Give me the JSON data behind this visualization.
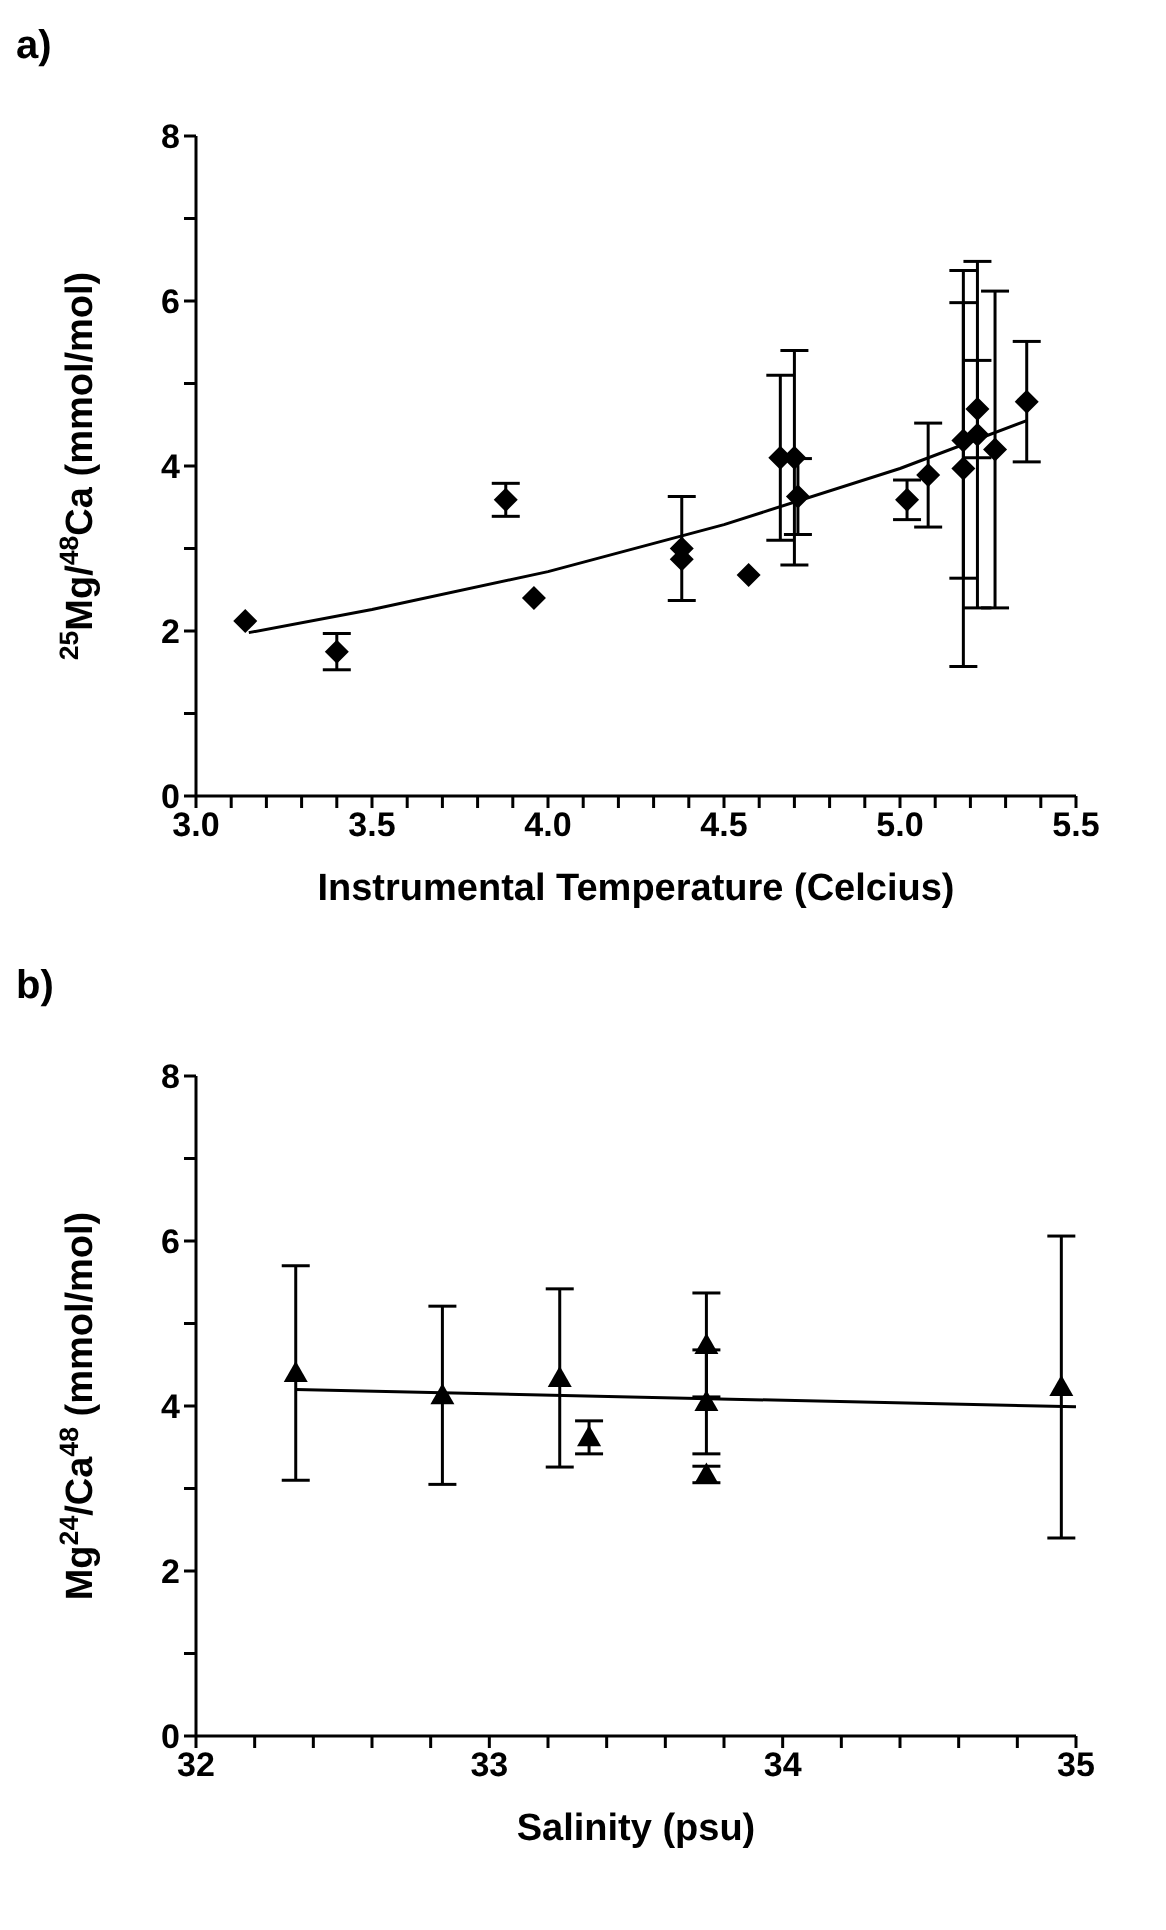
{
  "chart_data": [
    {
      "type": "scatter",
      "title": "a)",
      "xlabel": "Instrumental Temperature (Celcius)",
      "ylabel": "$^{25}$Mg/$^{48}$Ca (mmol/mol)",
      "marker": "diamond",
      "grid": false,
      "legend": false,
      "xlim": [
        3.0,
        5.5
      ],
      "ylim": [
        0,
        8
      ],
      "xticks": [
        {
          "value": 3,
          "label": "3.0"
        },
        {
          "value": 3.1,
          "label": null
        },
        {
          "value": 3.2,
          "label": null
        },
        {
          "value": 3.3,
          "label": null
        },
        {
          "value": 3.4,
          "label": null
        },
        3.5,
        {
          "value": 3.6,
          "label": null
        },
        {
          "value": 3.7,
          "label": null
        },
        {
          "value": 3.8,
          "label": null
        },
        {
          "value": 3.9,
          "label": null
        },
        {
          "value": 4,
          "label": "4.0"
        },
        {
          "value": 4.1,
          "label": null
        },
        {
          "value": 4.2,
          "label": null
        },
        {
          "value": 4.3,
          "label": null
        },
        {
          "value": 4.4,
          "label": null
        },
        4.5,
        {
          "value": 4.6,
          "label": null
        },
        {
          "value": 4.7,
          "label": null
        },
        {
          "value": 4.8,
          "label": null
        },
        {
          "value": 4.9,
          "label": null
        },
        {
          "value": 5,
          "label": "5.0"
        },
        {
          "value": 5.1,
          "label": null
        },
        {
          "value": 5.2,
          "label": null
        },
        {
          "value": 5.3,
          "label": null
        },
        {
          "value": 5.4,
          "label": null
        },
        5.5
      ],
      "yticks": [
        0,
        {
          "value": 1,
          "label": null
        },
        2,
        {
          "value": 3,
          "label": null
        },
        4,
        {
          "value": 5,
          "label": null
        },
        6,
        {
          "value": 7,
          "label": null
        },
        8
      ],
      "series": [
        {
          "type": "scatter",
          "color": "#000000",
          "x": [
            3.14,
            3.4,
            3.88,
            3.96,
            4.38,
            4.38,
            4.57,
            4.66,
            4.7,
            4.71,
            5.02,
            5.08,
            5.18,
            5.18,
            5.22,
            5.22,
            5.27,
            5.36
          ],
          "values": [
            2.12,
            1.75,
            3.59,
            2.4,
            3.0,
            2.87,
            2.68,
            4.1,
            4.1,
            3.63,
            3.59,
            3.89,
            3.97,
            4.31,
            4.38,
            4.69,
            4.2,
            4.78
          ],
          "errors": [
            null,
            0.22,
            0.2,
            null,
            0.63,
            null,
            null,
            1.0,
            1.3,
            0.46,
            0.24,
            0.63,
            2.4,
            1.67,
            2.1,
            0.59,
            1.92,
            0.73
          ]
        },
        {
          "type": "line",
          "color": "#000000",
          "marker": "none",
          "x": [
            3.15,
            3.5,
            4.0,
            4.5,
            5.0,
            5.36
          ],
          "values": [
            1.98,
            2.26,
            2.72,
            3.29,
            3.97,
            4.55
          ]
        }
      ]
    },
    {
      "type": "scatter",
      "title": "b)",
      "xlabel": "Salinity (psu)",
      "ylabel": "Mg$^{24}$/Ca$^{48}$ (mmol/mol)",
      "marker": "triangle",
      "grid": false,
      "legend": false,
      "xlim": [
        32,
        35
      ],
      "ylim": [
        0,
        8
      ],
      "xticks": [
        32,
        {
          "value": 32.2,
          "label": null
        },
        {
          "value": 32.4,
          "label": null
        },
        {
          "value": 32.6,
          "label": null
        },
        {
          "value": 32.8,
          "label": null
        },
        33,
        {
          "value": 33.2,
          "label": null
        },
        {
          "value": 33.4,
          "label": null
        },
        {
          "value": 33.6,
          "label": null
        },
        {
          "value": 33.8,
          "label": null
        },
        34,
        {
          "value": 34.2,
          "label": null
        },
        {
          "value": 34.4,
          "label": null
        },
        {
          "value": 34.6,
          "label": null
        },
        {
          "value": 34.8,
          "label": null
        },
        35
      ],
      "yticks": [
        0,
        {
          "value": 1,
          "label": null
        },
        2,
        {
          "value": 3,
          "label": null
        },
        4,
        {
          "value": 5,
          "label": null
        },
        6,
        {
          "value": 7,
          "label": null
        },
        8
      ],
      "series": [
        {
          "type": "scatter",
          "color": "#000000",
          "x": [
            32.34,
            32.84,
            33.24,
            33.34,
            33.74,
            33.74,
            33.74,
            34.95
          ],
          "values": [
            4.4,
            4.13,
            4.34,
            3.62,
            4.74,
            4.05,
            3.17,
            4.23
          ],
          "errors": [
            1.3,
            1.08,
            1.08,
            0.2,
            0.63,
            0.63,
            0.1,
            1.83
          ]
        },
        {
          "type": "line",
          "color": "#000000",
          "marker": "none",
          "x": [
            32.34,
            35.0
          ],
          "values": [
            4.2,
            3.99
          ]
        }
      ]
    }
  ]
}
